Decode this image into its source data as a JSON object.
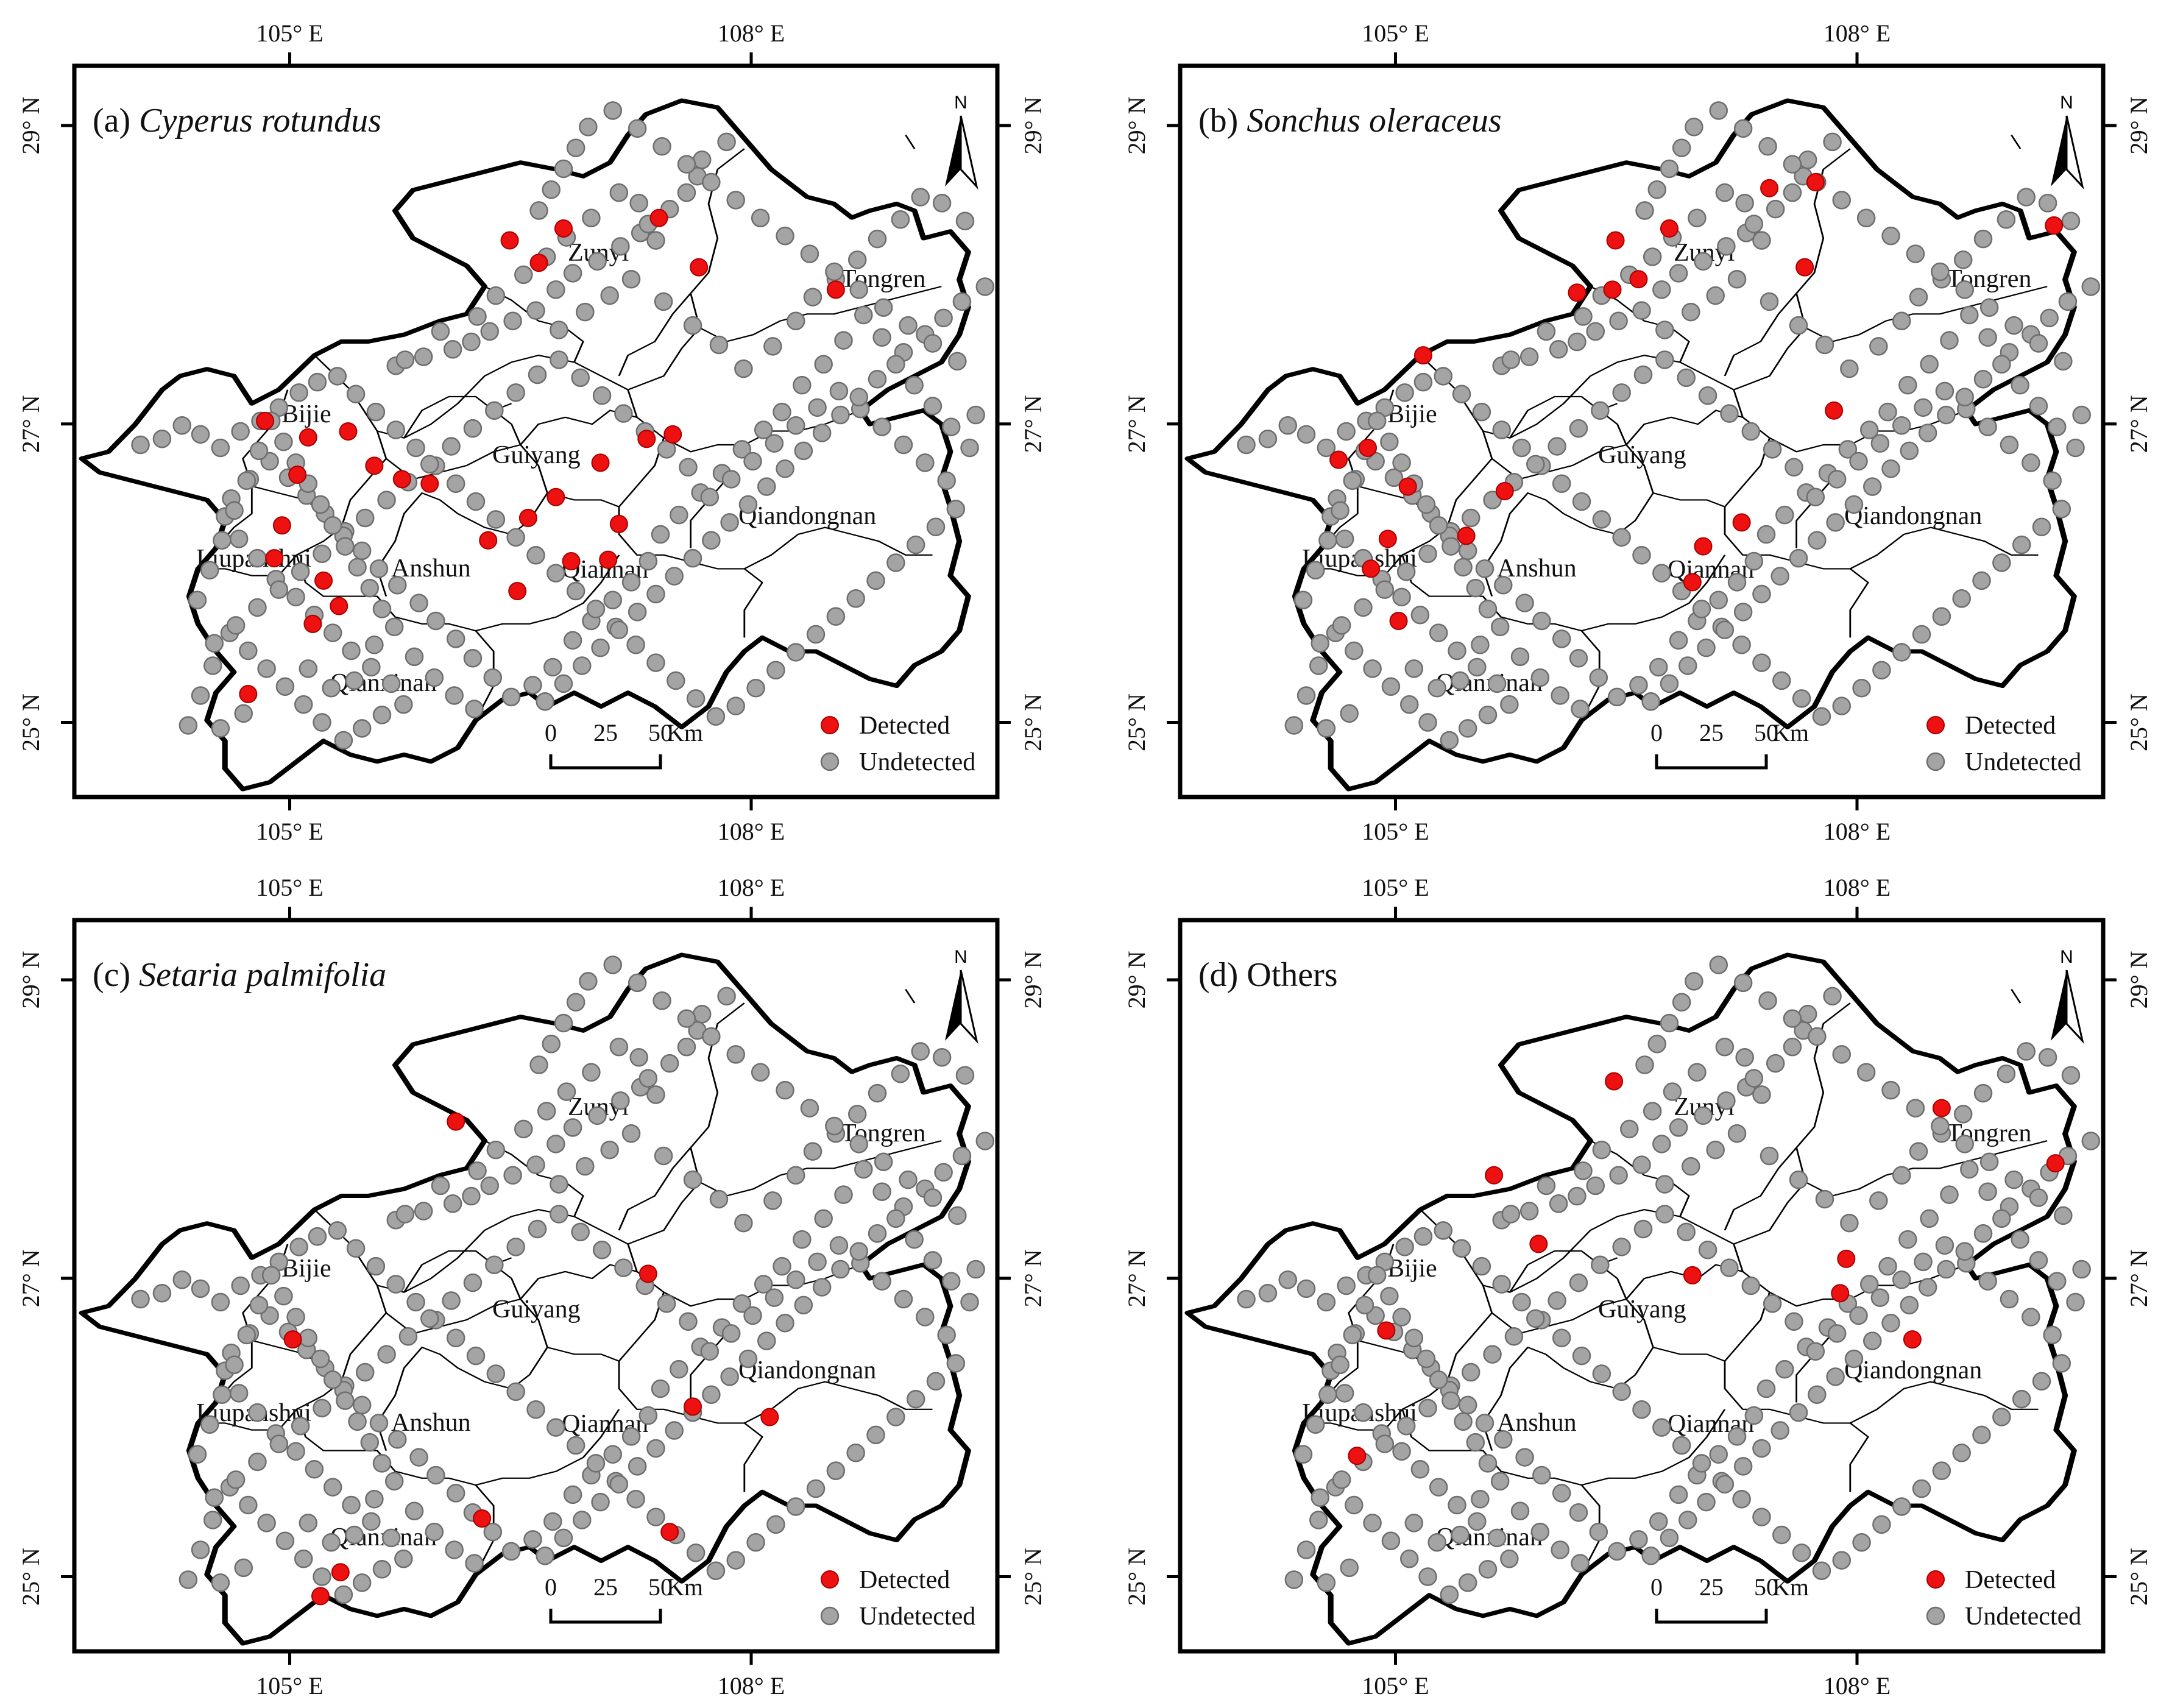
{
  "axis_labels": {
    "lon": [
      "105° E",
      "108° E"
    ],
    "lat": [
      "29° N",
      "27° N",
      "25° N"
    ]
  },
  "north_arrow": "N",
  "colors": {
    "detected": "#ee1111",
    "undetected": "#a4a4a4"
  },
  "legend": {
    "detected": "Detected",
    "undetected": "Undetected"
  },
  "scale_bar": {
    "ticks": [
      "0",
      "25",
      "50"
    ],
    "unit": "Km"
  },
  "cities": [
    "Zunyi",
    "Tongren",
    "Bijie",
    "Guiyang",
    "Qiandongnan",
    "Liupanshui",
    "Anshun",
    "Qiannan",
    "Qianxinan"
  ],
  "panels": [
    {
      "label": "(a)",
      "species": "Cyperus rotundus",
      "italic": true
    },
    {
      "label": "(b)",
      "species": "Sonchus oleraceus",
      "italic": true
    },
    {
      "label": "(c)",
      "species": "Setaria palmifolia",
      "italic": true
    },
    {
      "label": "(d)",
      "species": "Others",
      "italic": false
    }
  ],
  "chart_data": {
    "type": "scatter",
    "xlim": [
      103.6,
      109.6
    ],
    "ylim": [
      24.5,
      29.4
    ],
    "sites": [
      [
        105.69,
        27.39
      ],
      [
        105.75,
        27.43
      ],
      [
        105.87,
        27.45
      ],
      [
        106.06,
        27.5
      ],
      [
        106.18,
        27.55
      ],
      [
        106.3,
        27.62
      ],
      [
        106.45,
        27.69
      ],
      [
        106.6,
        27.76
      ],
      [
        106.73,
        27.9
      ],
      [
        106.84,
        28.01
      ],
      [
        107.0,
        28.09
      ],
      [
        107.15,
        28.19
      ],
      [
        107.28,
        28.28
      ],
      [
        107.47,
        28.44
      ],
      [
        107.58,
        28.55
      ],
      [
        107.68,
        28.77
      ],
      [
        107.84,
        28.89
      ],
      [
        107.65,
        28.66
      ],
      [
        107.38,
        28.23
      ],
      [
        107.33,
        28.34
      ],
      [
        107.27,
        28.48
      ],
      [
        107.14,
        28.55
      ],
      [
        106.96,
        28.38
      ],
      [
        106.8,
        28.25
      ],
      [
        106.67,
        28.12
      ],
      [
        106.52,
        28.0
      ],
      [
        106.34,
        27.86
      ],
      [
        106.22,
        27.72
      ],
      [
        105.98,
        27.62
      ],
      [
        106.75,
        27.63
      ],
      [
        106.92,
        27.75
      ],
      [
        107.08,
        27.86
      ],
      [
        107.22,
        27.97
      ],
      [
        107.43,
        27.82
      ],
      [
        107.62,
        27.66
      ],
      [
        107.79,
        27.53
      ],
      [
        107.95,
        27.37
      ],
      [
        108.14,
        27.52
      ],
      [
        108.29,
        27.69
      ],
      [
        108.4,
        27.85
      ],
      [
        108.55,
        27.97
      ],
      [
        108.69,
        28.1
      ],
      [
        108.82,
        28.24
      ],
      [
        108.97,
        28.37
      ],
      [
        109.1,
        28.52
      ],
      [
        109.24,
        28.48
      ],
      [
        109.39,
        28.36
      ],
      [
        109.52,
        27.92
      ],
      [
        109.37,
        27.82
      ],
      [
        109.25,
        27.71
      ],
      [
        109.13,
        27.6
      ],
      [
        108.99,
        27.48
      ],
      [
        108.85,
        27.58
      ],
      [
        108.73,
        27.73
      ],
      [
        108.6,
        27.56
      ],
      [
        108.47,
        27.4
      ],
      [
        108.33,
        27.26
      ],
      [
        108.2,
        27.08
      ],
      [
        108.08,
        26.96
      ],
      [
        107.94,
        26.83
      ],
      [
        107.81,
        26.67
      ],
      [
        107.67,
        26.54
      ],
      [
        107.53,
        26.39
      ],
      [
        107.41,
        26.26
      ],
      [
        107.33,
        26.08
      ],
      [
        107.22,
        25.94
      ],
      [
        107.1,
        25.82
      ],
      [
        106.96,
        25.68
      ],
      [
        106.84,
        25.55
      ],
      [
        106.71,
        25.37
      ],
      [
        106.58,
        25.25
      ],
      [
        106.44,
        25.17
      ],
      [
        106.32,
        25.3
      ],
      [
        106.19,
        25.43
      ],
      [
        106.08,
        25.56
      ],
      [
        105.95,
        25.68
      ],
      [
        105.84,
        25.8
      ],
      [
        105.7,
        25.92
      ],
      [
        105.58,
        26.03
      ],
      [
        105.47,
        26.15
      ],
      [
        105.36,
        26.28
      ],
      [
        105.23,
        26.4
      ],
      [
        105.11,
        26.52
      ],
      [
        104.99,
        26.64
      ],
      [
        104.87,
        26.75
      ],
      [
        104.74,
        26.63
      ],
      [
        104.62,
        26.5
      ],
      [
        104.58,
        26.38
      ],
      [
        104.67,
        26.23
      ],
      [
        104.79,
        26.1
      ],
      [
        104.91,
        25.96
      ],
      [
        105.04,
        25.84
      ],
      [
        105.16,
        25.72
      ],
      [
        105.28,
        25.6
      ],
      [
        105.4,
        25.48
      ],
      [
        105.53,
        25.37
      ],
      [
        105.66,
        25.26
      ],
      [
        105.74,
        25.12
      ],
      [
        105.6,
        25.05
      ],
      [
        105.47,
        24.96
      ],
      [
        105.35,
        24.88
      ],
      [
        105.21,
        25.0
      ],
      [
        105.09,
        25.12
      ],
      [
        104.97,
        25.24
      ],
      [
        104.85,
        25.36
      ],
      [
        104.73,
        25.48
      ],
      [
        104.61,
        25.6
      ],
      [
        104.5,
        25.38
      ],
      [
        104.42,
        25.18
      ],
      [
        104.34,
        24.98
      ],
      [
        104.55,
        24.96
      ],
      [
        104.7,
        25.06
      ],
      [
        105.12,
        25.36
      ],
      [
        105.27,
        25.23
      ],
      [
        105.42,
        25.28
      ],
      [
        105.55,
        25.52
      ],
      [
        105.68,
        25.64
      ],
      [
        105.81,
        25.44
      ],
      [
        105.94,
        25.3
      ],
      [
        106.07,
        25.18
      ],
      [
        106.2,
        25.09
      ],
      [
        104.03,
        26.86
      ],
      [
        104.17,
        26.9
      ],
      [
        104.3,
        26.99
      ],
      [
        104.42,
        26.93
      ],
      [
        104.55,
        26.84
      ],
      [
        104.68,
        26.95
      ],
      [
        104.81,
        27.02
      ],
      [
        104.93,
        27.11
      ],
      [
        105.06,
        27.21
      ],
      [
        105.18,
        27.28
      ],
      [
        105.31,
        27.32
      ],
      [
        105.43,
        27.2
      ],
      [
        105.56,
        27.08
      ],
      [
        105.69,
        26.96
      ],
      [
        105.82,
        26.84
      ],
      [
        105.95,
        26.72
      ],
      [
        106.08,
        26.6
      ],
      [
        106.21,
        26.48
      ],
      [
        106.34,
        26.36
      ],
      [
        106.47,
        26.24
      ],
      [
        106.6,
        26.12
      ],
      [
        106.73,
        26.0
      ],
      [
        106.86,
        25.88
      ],
      [
        106.99,
        25.76
      ],
      [
        107.12,
        25.64
      ],
      [
        107.25,
        25.52
      ],
      [
        107.38,
        25.4
      ],
      [
        107.51,
        25.28
      ],
      [
        107.64,
        25.16
      ],
      [
        107.77,
        25.04
      ],
      [
        107.9,
        25.11
      ],
      [
        108.03,
        25.23
      ],
      [
        108.16,
        25.35
      ],
      [
        108.29,
        25.47
      ],
      [
        108.42,
        25.59
      ],
      [
        108.55,
        25.71
      ],
      [
        108.68,
        25.83
      ],
      [
        108.81,
        25.95
      ],
      [
        108.94,
        26.07
      ],
      [
        109.07,
        26.19
      ],
      [
        109.2,
        26.31
      ],
      [
        109.33,
        26.43
      ],
      [
        109.27,
        26.62
      ],
      [
        109.13,
        26.74
      ],
      [
        108.99,
        26.86
      ],
      [
        108.85,
        26.98
      ],
      [
        108.71,
        27.1
      ],
      [
        108.57,
        27.22
      ],
      [
        108.43,
        27.11
      ],
      [
        108.29,
        26.99
      ],
      [
        108.15,
        26.87
      ],
      [
        108.01,
        26.75
      ],
      [
        107.87,
        26.63
      ],
      [
        107.73,
        26.51
      ],
      [
        107.59,
        26.71
      ],
      [
        107.45,
        26.83
      ],
      [
        107.31,
        26.95
      ],
      [
        107.17,
        27.07
      ],
      [
        107.03,
        27.19
      ],
      [
        106.89,
        27.31
      ],
      [
        106.75,
        27.43
      ],
      [
        106.61,
        27.33
      ],
      [
        106.47,
        27.21
      ],
      [
        106.33,
        27.09
      ],
      [
        106.19,
        26.97
      ],
      [
        106.05,
        26.85
      ],
      [
        105.91,
        26.73
      ],
      [
        105.77,
        26.61
      ],
      [
        105.63,
        26.49
      ],
      [
        105.49,
        26.37
      ],
      [
        105.35,
        26.25
      ],
      [
        105.21,
        26.13
      ],
      [
        105.07,
        26.01
      ],
      [
        104.93,
        25.89
      ],
      [
        104.79,
        25.77
      ],
      [
        104.65,
        25.65
      ],
      [
        104.51,
        25.53
      ],
      [
        104.4,
        25.82
      ],
      [
        104.48,
        26.02
      ],
      [
        104.56,
        26.22
      ],
      [
        104.64,
        26.42
      ],
      [
        104.72,
        26.62
      ],
      [
        104.8,
        26.82
      ],
      [
        104.88,
        27.02
      ],
      [
        104.96,
        26.88
      ],
      [
        105.04,
        26.74
      ],
      [
        105.12,
        26.6
      ],
      [
        105.2,
        26.46
      ],
      [
        105.28,
        26.32
      ],
      [
        105.36,
        26.18
      ],
      [
        105.44,
        26.04
      ],
      [
        105.52,
        25.9
      ],
      [
        105.6,
        25.76
      ],
      [
        106.62,
        28.43
      ],
      [
        106.7,
        28.57
      ],
      [
        106.78,
        28.71
      ],
      [
        106.86,
        28.85
      ],
      [
        106.94,
        28.99
      ],
      [
        107.1,
        29.1
      ],
      [
        107.26,
        28.98
      ],
      [
        107.42,
        28.86
      ],
      [
        107.58,
        28.74
      ],
      [
        107.74,
        28.62
      ],
      [
        107.9,
        28.5
      ],
      [
        108.06,
        28.38
      ],
      [
        108.22,
        28.26
      ],
      [
        108.38,
        28.14
      ],
      [
        108.54,
        28.02
      ],
      [
        108.7,
        27.9
      ],
      [
        108.86,
        27.78
      ],
      [
        109.02,
        27.66
      ],
      [
        109.18,
        27.54
      ],
      [
        109.34,
        27.42
      ],
      [
        109.46,
        27.06
      ],
      [
        109.42,
        26.84
      ],
      [
        109.3,
        26.98
      ],
      [
        109.18,
        27.12
      ],
      [
        109.06,
        27.26
      ],
      [
        108.94,
        27.4
      ],
      [
        108.82,
        27.3
      ],
      [
        108.7,
        27.18
      ],
      [
        108.58,
        27.06
      ],
      [
        108.46,
        26.94
      ],
      [
        108.34,
        26.82
      ],
      [
        108.22,
        26.7
      ],
      [
        108.1,
        26.58
      ],
      [
        107.98,
        26.46
      ],
      [
        107.86,
        26.34
      ],
      [
        107.74,
        26.22
      ],
      [
        107.62,
        26.1
      ],
      [
        107.5,
        25.98
      ],
      [
        107.38,
        25.86
      ],
      [
        107.26,
        25.74
      ],
      [
        107.14,
        25.62
      ],
      [
        107.02,
        25.5
      ],
      [
        106.9,
        25.38
      ],
      [
        106.78,
        25.26
      ],
      [
        106.66,
        25.14
      ]
    ],
    "panels": [
      {
        "name": "(a) Cyperus rotundus",
        "detected": [
          [
            106.43,
            28.23
          ],
          [
            106.62,
            28.08
          ],
          [
            106.78,
            28.31
          ],
          [
            107.4,
            28.38
          ],
          [
            107.66,
            28.05
          ],
          [
            108.55,
            27.9
          ],
          [
            104.84,
            27.02
          ],
          [
            105.12,
            26.91
          ],
          [
            105.38,
            26.95
          ],
          [
            105.55,
            26.72
          ],
          [
            105.73,
            26.63
          ],
          [
            105.91,
            26.6
          ],
          [
            105.05,
            26.66
          ],
          [
            104.95,
            26.32
          ],
          [
            104.9,
            26.1
          ],
          [
            105.22,
            25.95
          ],
          [
            105.32,
            25.78
          ],
          [
            105.15,
            25.66
          ],
          [
            106.29,
            26.22
          ],
          [
            106.55,
            26.37
          ],
          [
            106.73,
            26.51
          ],
          [
            107.02,
            26.74
          ],
          [
            107.32,
            26.9
          ],
          [
            107.49,
            26.93
          ],
          [
            107.14,
            26.33
          ],
          [
            107.07,
            26.09
          ],
          [
            106.83,
            26.08
          ],
          [
            106.48,
            25.88
          ],
          [
            104.73,
            25.19
          ]
        ]
      },
      {
        "name": "(b) Sonchus oleraceus",
        "detected": [
          [
            106.43,
            28.23
          ],
          [
            106.78,
            28.31
          ],
          [
            107.43,
            28.58
          ],
          [
            107.73,
            28.62
          ],
          [
            109.28,
            28.33
          ],
          [
            105.18,
            27.46
          ],
          [
            106.18,
            27.88
          ],
          [
            106.41,
            27.9
          ],
          [
            106.58,
            27.97
          ],
          [
            107.66,
            28.05
          ],
          [
            107.85,
            27.09
          ],
          [
            104.63,
            26.76
          ],
          [
            104.82,
            26.84
          ],
          [
            105.08,
            26.58
          ],
          [
            105.46,
            26.25
          ],
          [
            105.71,
            26.55
          ],
          [
            104.95,
            26.23
          ],
          [
            104.84,
            26.03
          ],
          [
            105.02,
            25.68
          ],
          [
            107.0,
            26.18
          ],
          [
            107.25,
            26.34
          ],
          [
            106.93,
            25.94
          ]
        ]
      },
      {
        "name": "(c) Setaria palmifolia",
        "detected": [
          [
            106.08,
            28.05
          ],
          [
            105.02,
            26.59
          ],
          [
            107.33,
            27.03
          ],
          [
            107.62,
            26.14
          ],
          [
            108.12,
            26.07
          ],
          [
            106.25,
            25.39
          ],
          [
            107.47,
            25.3
          ],
          [
            105.2,
            24.87
          ],
          [
            105.33,
            25.03
          ]
        ]
      },
      {
        "name": "(d) Others",
        "detected": [
          [
            106.42,
            28.32
          ],
          [
            108.55,
            28.14
          ],
          [
            109.29,
            27.77
          ],
          [
            105.64,
            27.69
          ],
          [
            105.93,
            27.23
          ],
          [
            106.93,
            27.02
          ],
          [
            107.93,
            27.13
          ],
          [
            107.89,
            26.9
          ],
          [
            108.36,
            26.59
          ],
          [
            104.75,
            25.81
          ],
          [
            104.94,
            26.65
          ]
        ]
      }
    ]
  }
}
